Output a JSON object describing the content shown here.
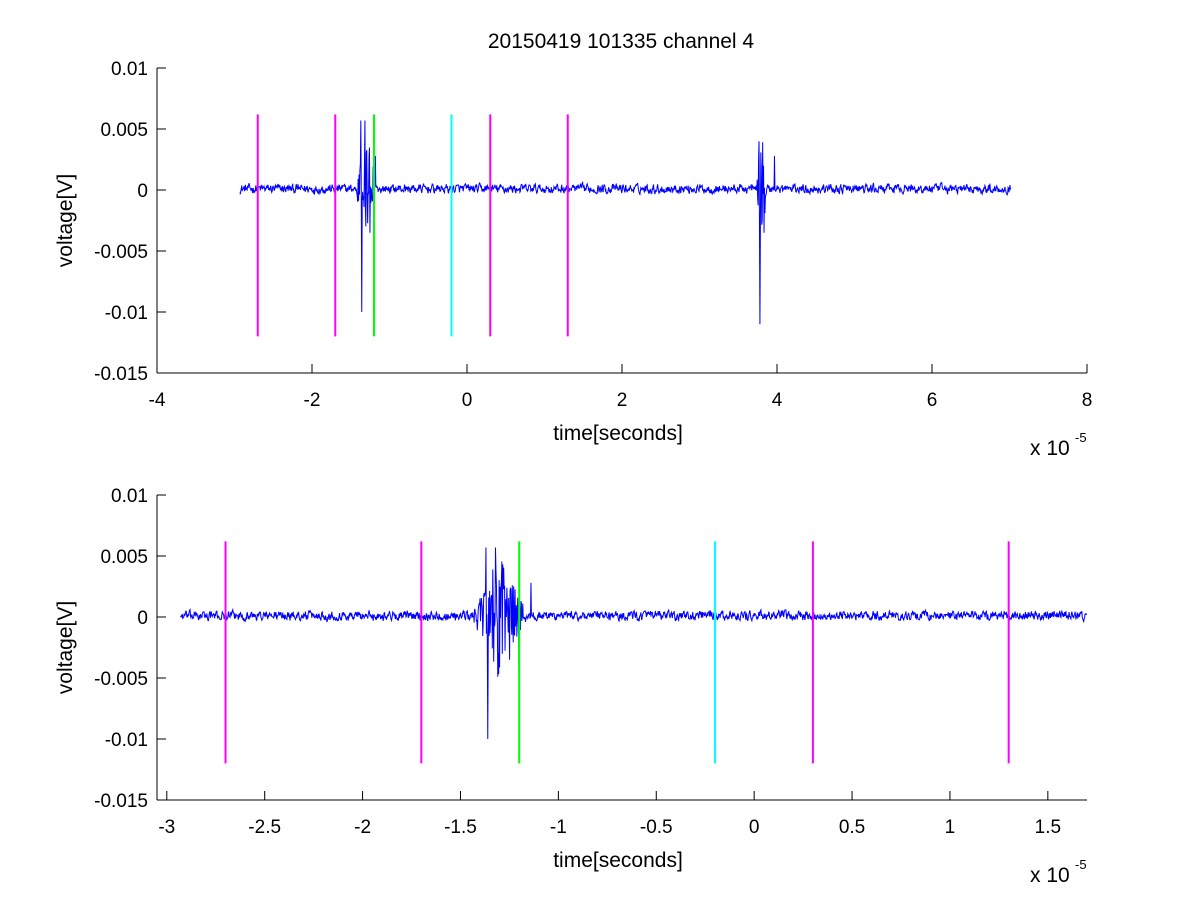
{
  "figure": {
    "background": "#ffffff",
    "title": "20150419 101335 channel 4"
  },
  "chart_data": [
    {
      "type": "line",
      "panel": "top",
      "title": "20150419 101335 channel 4",
      "xlabel": "time[seconds]",
      "ylabel": "voltage[V]",
      "x_multiplier_base": "x 10",
      "x_multiplier_exp": "-5",
      "xlim": [
        -4e-05,
        8e-05
      ],
      "ylim": [
        -0.015,
        0.01
      ],
      "xticks": [
        -4e-05,
        -2e-05,
        0,
        2e-05,
        4e-05,
        6e-05,
        8e-05
      ],
      "xtick_labels": [
        "-4",
        "-2",
        "0",
        "2",
        "4",
        "6",
        "8"
      ],
      "yticks": [
        0.01,
        0.005,
        0,
        -0.005,
        -0.01,
        -0.015
      ],
      "ytick_labels": [
        "0.01",
        "0.005",
        "0",
        "-0.005",
        "-0.01",
        "-0.015"
      ],
      "grid": false,
      "signal": {
        "color": "#0000ff",
        "x_range": [
          -2.93e-05,
          7.02e-05
        ],
        "baseline_noise": 0.0004,
        "bursts": [
          {
            "center": -1.3e-05,
            "halfwidth": 1.4e-06,
            "amplitude": 0.0095
          },
          {
            "center": 3.8e-05,
            "halfwidth": 7e-07,
            "amplitude": 0.01
          }
        ],
        "peaks": [
          {
            "x": -1.37e-05,
            "y": 0.0057
          },
          {
            "x": -1.36e-05,
            "y": -0.01
          },
          {
            "x": -1.32e-05,
            "y": 0.0057
          },
          {
            "x": -1.25e-05,
            "y": -0.0035
          },
          {
            "x": -1.18e-05,
            "y": 0.0028
          },
          {
            "x": 3.77e-05,
            "y": 0.004
          },
          {
            "x": 3.78e-05,
            "y": -0.011
          },
          {
            "x": 3.83e-05,
            "y": -0.0035
          },
          {
            "x": 3.97e-05,
            "y": 0.0028
          }
        ]
      },
      "markers": [
        {
          "x": -2.7e-05,
          "y0": -0.012,
          "y1": 0.0062,
          "color": "#ff00ff"
        },
        {
          "x": -1.7e-05,
          "y0": -0.012,
          "y1": 0.0062,
          "color": "#ff00ff"
        },
        {
          "x": -1.2e-05,
          "y0": -0.012,
          "y1": 0.0062,
          "color": "#00ff00"
        },
        {
          "x": -2e-06,
          "y0": -0.012,
          "y1": 0.0062,
          "color": "#00ffff"
        },
        {
          "x": 3e-06,
          "y0": -0.012,
          "y1": 0.0062,
          "color": "#ff00ff"
        },
        {
          "x": 1.3e-05,
          "y0": -0.012,
          "y1": 0.0062,
          "color": "#ff00ff"
        }
      ]
    },
    {
      "type": "line",
      "panel": "bottom",
      "title": "",
      "xlabel": "time[seconds]",
      "ylabel": "voltage[V]",
      "x_multiplier_base": "x 10",
      "x_multiplier_exp": "-5",
      "xlim": [
        -3.05e-05,
        1.7e-05
      ],
      "ylim": [
        -0.015,
        0.01
      ],
      "xticks": [
        -3e-05,
        -2.5e-05,
        -2e-05,
        -1.5e-05,
        -1e-05,
        -5e-06,
        0,
        5e-06,
        1e-05,
        1.5e-05
      ],
      "xtick_labels": [
        "-3",
        "-2.5",
        "-2",
        "-1.5",
        "-1",
        "-0.5",
        "0",
        "0.5",
        "1",
        "1.5"
      ],
      "yticks": [
        0.01,
        0.005,
        0,
        -0.005,
        -0.01,
        -0.015
      ],
      "ytick_labels": [
        "0.01",
        "0.005",
        "0",
        "-0.005",
        "-0.01",
        "-0.015"
      ],
      "grid": false,
      "signal": {
        "color": "#0000ff",
        "x_range": [
          -2.93e-05,
          1.7e-05
        ],
        "baseline_noise": 0.0004,
        "bursts": [
          {
            "center": -1.3e-05,
            "halfwidth": 1.4e-06,
            "amplitude": 0.0095
          }
        ],
        "peaks": [
          {
            "x": -1.37e-05,
            "y": 0.0057
          },
          {
            "x": -1.36e-05,
            "y": -0.01
          },
          {
            "x": -1.32e-05,
            "y": 0.0057
          },
          {
            "x": -1.25e-05,
            "y": -0.0035
          },
          {
            "x": -1.2e-05,
            "y": -0.007
          },
          {
            "x": -1.14e-05,
            "y": 0.0028
          }
        ]
      },
      "markers": [
        {
          "x": -2.7e-05,
          "y0": -0.012,
          "y1": 0.0062,
          "color": "#ff00ff"
        },
        {
          "x": -1.7e-05,
          "y0": -0.012,
          "y1": 0.0062,
          "color": "#ff00ff"
        },
        {
          "x": -1.2e-05,
          "y0": -0.012,
          "y1": 0.0062,
          "color": "#00ff00"
        },
        {
          "x": -2e-06,
          "y0": -0.012,
          "y1": 0.0062,
          "color": "#00ffff"
        },
        {
          "x": 3e-06,
          "y0": -0.012,
          "y1": 0.0062,
          "color": "#ff00ff"
        },
        {
          "x": 1.3e-05,
          "y0": -0.012,
          "y1": 0.0062,
          "color": "#ff00ff"
        }
      ]
    }
  ]
}
